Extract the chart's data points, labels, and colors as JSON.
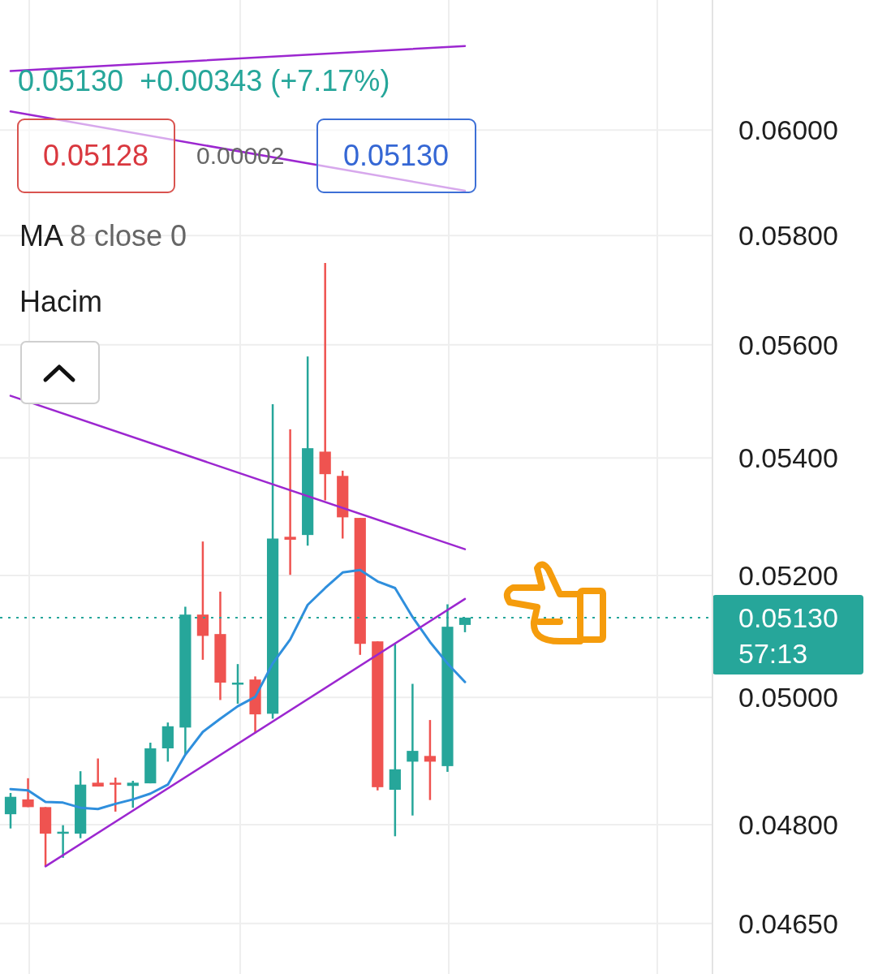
{
  "chart_data": {
    "type": "candlestick",
    "categories": [
      null,
      null,
      null,
      null,
      null,
      null,
      null,
      null,
      null,
      null,
      null,
      null,
      null,
      null,
      null,
      null,
      null,
      null,
      null,
      null,
      null,
      null,
      null,
      null,
      null,
      null,
      null
    ],
    "ohlc": [
      [
        0.04816,
        0.04849,
        0.04794,
        0.04843
      ],
      [
        0.04839,
        0.04872,
        0.04827,
        0.04827
      ],
      [
        0.04827,
        0.04827,
        0.04736,
        0.04786
      ],
      [
        0.04786,
        0.04799,
        0.04749,
        0.04789
      ],
      [
        0.04786,
        0.04883,
        0.04779,
        0.04862
      ],
      [
        0.04865,
        0.04903,
        0.04859,
        0.04859
      ],
      [
        0.04865,
        0.04873,
        0.0482,
        0.04864
      ],
      [
        0.0486,
        0.04868,
        0.04826,
        0.04865
      ],
      [
        0.04864,
        0.04928,
        0.04864,
        0.04919
      ],
      [
        0.04919,
        0.0496,
        0.04898,
        0.04954
      ],
      [
        0.04952,
        0.05148,
        0.04909,
        0.05135
      ],
      [
        0.05135,
        0.05257,
        0.05061,
        0.051
      ],
      [
        0.05103,
        0.05173,
        0.04996,
        0.05024
      ],
      [
        0.05021,
        0.05054,
        0.0499,
        0.05024
      ],
      [
        0.05029,
        0.05034,
        0.04943,
        0.04973
      ],
      [
        0.04974,
        0.05494,
        0.04966,
        0.05262
      ],
      [
        0.05265,
        0.0545,
        0.05201,
        0.0526
      ],
      [
        0.05268,
        0.05579,
        0.0525,
        0.05417
      ],
      [
        0.05411,
        0.05749,
        0.05327,
        0.05372
      ],
      [
        0.05369,
        0.05378,
        0.05262,
        0.05298
      ],
      [
        0.05297,
        0.05297,
        0.05069,
        0.05087
      ],
      [
        0.05091,
        0.05091,
        0.04853,
        0.04858
      ],
      [
        0.04854,
        0.05087,
        0.04782,
        0.04886
      ],
      [
        0.04898,
        0.05022,
        0.04814,
        0.04915
      ],
      [
        0.04907,
        0.04964,
        0.04838,
        0.04898
      ],
      [
        0.04891,
        0.05152,
        0.04882,
        0.05115
      ],
      [
        0.05118,
        0.0513,
        0.05106,
        0.0513
      ]
    ],
    "colors": [
      "#26a69a",
      "#ef5350",
      "#ef5350",
      "#26a69a",
      "#26a69a",
      "#ef5350",
      "#ef5350",
      "#26a69a",
      "#26a69a",
      "#26a69a",
      "#26a69a",
      "#ef5350",
      "#ef5350",
      "#26a69a",
      "#ef5350",
      "#26a69a",
      "#ef5350",
      "#26a69a",
      "#ef5350",
      "#ef5350",
      "#ef5350",
      "#ef5350",
      "#26a69a",
      "#26a69a",
      "#ef5350",
      "#26a69a",
      "#26a69a"
    ],
    "series": [
      {
        "type": "line",
        "color": "#2f8fdd",
        "values": [
          0.04855,
          0.04853,
          0.04835,
          0.04834,
          0.04826,
          0.04824,
          0.04832,
          0.04839,
          0.04848,
          0.04862,
          0.04909,
          0.04945,
          0.04966,
          0.04986,
          0.05001,
          0.05055,
          0.05094,
          0.05151,
          0.05179,
          0.05205,
          0.05209,
          0.0519,
          0.05179,
          0.05131,
          0.0509,
          0.05055,
          0.05025
        ]
      },
      {
        "type": "line",
        "color": "#9c27d0",
        "values": [
          null,
          null,
          0.04736,
          null,
          null,
          null,
          null,
          null,
          null,
          null,
          null,
          null,
          null,
          null,
          null,
          null,
          null,
          null,
          null,
          null,
          null,
          null,
          null,
          null,
          null,
          null,
          0.05161
        ]
      },
      {
        "type": "line",
        "color": "#9c27d0",
        "values": [
          0.05509,
          null,
          null,
          null,
          null,
          null,
          null,
          null,
          null,
          null,
          null,
          null,
          null,
          null,
          null,
          null,
          null,
          null,
          null,
          null,
          null,
          null,
          null,
          null,
          null,
          null,
          0.05244
        ]
      },
      {
        "type": "line",
        "color": "#9c27d0",
        "values": [
          0.06115,
          null,
          null,
          null,
          null,
          null,
          null,
          null,
          null,
          null,
          null,
          null,
          null,
          null,
          null,
          null,
          null,
          null,
          null,
          null,
          null,
          null,
          null,
          null,
          null,
          null,
          0.06164
        ]
      },
      {
        "type": "line",
        "color": "#9c27d0",
        "values": [
          0.06036,
          null,
          null,
          null,
          null,
          null,
          null,
          null,
          null,
          null,
          null,
          null,
          null,
          null,
          null,
          null,
          null,
          null,
          null,
          null,
          null,
          null,
          null,
          null,
          null,
          null,
          0.05884
        ]
      }
    ],
    "ylim": [
      0.04575,
      0.06256
    ],
    "yticks": [
      {
        "value": 0.0465,
        "label": "0.04650"
      },
      {
        "value": 0.048,
        "label": "0.04800"
      },
      {
        "value": 0.05,
        "label": "0.05000"
      },
      {
        "value": 0.052,
        "label": "0.05200"
      },
      {
        "value": 0.054,
        "label": "0.05400"
      },
      {
        "value": 0.056,
        "label": "0.05600"
      },
      {
        "value": 0.058,
        "label": "0.05800"
      },
      {
        "value": 0.06,
        "label": "0.06000"
      }
    ],
    "tick_labels": "y",
    "log": "y",
    "grid": true,
    "line_style": "solid",
    "ref_lines": [
      {
        "axis": "y",
        "value": 0.0513,
        "label": "0.05130\n57:13",
        "color": "#26a69a",
        "line_style": "dotted"
      }
    ],
    "annotations": [
      "0.05130  +0.00343 (+7.17%)",
      "0.05128",
      "0.00002",
      "0.05130",
      "MA 8 close 0",
      "Hacim"
    ]
  }
}
